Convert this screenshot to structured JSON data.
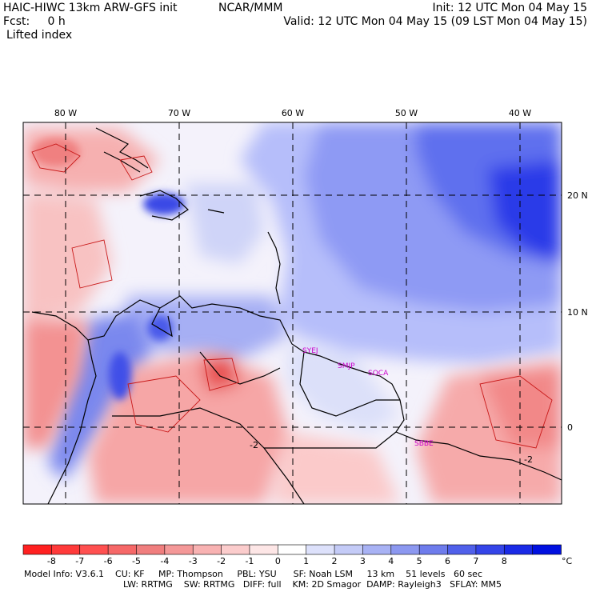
{
  "header": {
    "title_left": "HAIC-HIWC 13km ARW-GFS init",
    "title_center": "NCAR/MMM",
    "init": "Init: 12 UTC Mon 04 May 15",
    "fcst": "Fcst:     0 h",
    "valid": "Valid: 12 UTC Mon 04 May 15 (09 LST Mon 04 May 15)",
    "field": "Lifted index"
  },
  "map": {
    "lon_labels": [
      "80 W",
      "70 W",
      "60 W",
      "50 W",
      "40 W"
    ],
    "lat_labels": [
      "20 N",
      "10 N",
      "0"
    ],
    "stations": [
      "SYEJ",
      "SMJP",
      "SOCA",
      "SBBE"
    ],
    "contour_labels": [
      "-2",
      "-2"
    ],
    "colors": {
      "frame": "#000000",
      "station": "#cc00cc",
      "neutral": "#ffffff"
    }
  },
  "colorbar": {
    "tick_labels": [
      "-8",
      "-7",
      "-6",
      "-5",
      "-4",
      "-3",
      "-2",
      "-1",
      "0",
      "1",
      "2",
      "3",
      "4",
      "5",
      "6",
      "7",
      "8"
    ],
    "unit": "°C",
    "colors": [
      "#ff2020",
      "#ff3a3a",
      "#ff5050",
      "#f66868",
      "#f07e7e",
      "#f49898",
      "#f8b2b2",
      "#fbcccc",
      "#fde6e6",
      "#ffffff",
      "#dde1fb",
      "#c4cbf7",
      "#a8b2f4",
      "#8c98f0",
      "#6e7cec",
      "#5060ea",
      "#3444e8",
      "#1a2ae6",
      "#0010e0"
    ]
  },
  "footer": {
    "line1": "Model Info: V3.6.1    CU: KF     MP: Thompson     PBL: YSU      SF: Noah LSM     13 km    51 levels   60 sec",
    "line2": "LW: RRTMG    SW: RRTMG   DIFF: full    KM: 2D Smagor  DAMP: Rayleigh3   SFLAY: MM5"
  }
}
